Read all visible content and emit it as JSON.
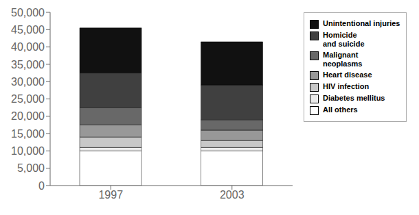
{
  "chart_data": {
    "type": "bar",
    "stacked": true,
    "legend": "right",
    "grid": false,
    "categories": [
      "1997",
      "2003"
    ],
    "series": [
      {
        "name": "All others",
        "color": "#ffffff",
        "values": [
          10000,
          10000
        ]
      },
      {
        "name": "Diabetes mellitus",
        "color": "#ebebeb",
        "values": [
          1000,
          1000
        ]
      },
      {
        "name": "HIV infection",
        "color": "#c8c8c8",
        "values": [
          3000,
          2000
        ]
      },
      {
        "name": "Heart disease",
        "color": "#989898",
        "values": [
          3500,
          3000
        ]
      },
      {
        "name": "Malignant\nneoplasms",
        "color": "#686868",
        "values": [
          5000,
          3000
        ]
      },
      {
        "name": "Homicide\nand suicide",
        "color": "#404040",
        "values": [
          10000,
          10000
        ]
      },
      {
        "name": "Unintentional injuries",
        "color": "#111111",
        "values": [
          13000,
          12500
        ]
      }
    ],
    "ylim": [
      0,
      50000
    ],
    "yticks": [
      0,
      {
        "value": 5000,
        "label": "5,000"
      },
      {
        "value": 10000,
        "label": "10,000"
      },
      {
        "value": 15000,
        "label": "15,000"
      },
      {
        "value": 20000,
        "label": "20,000"
      },
      {
        "value": 25000,
        "label": "25,000"
      },
      {
        "value": 30000,
        "label": "30,000"
      },
      {
        "value": 35000,
        "label": "35,000"
      },
      {
        "value": 40000,
        "label": "40,000"
      },
      {
        "value": 45000,
        "label": "45,000"
      },
      {
        "value": 50000,
        "label": "50,000"
      }
    ]
  }
}
